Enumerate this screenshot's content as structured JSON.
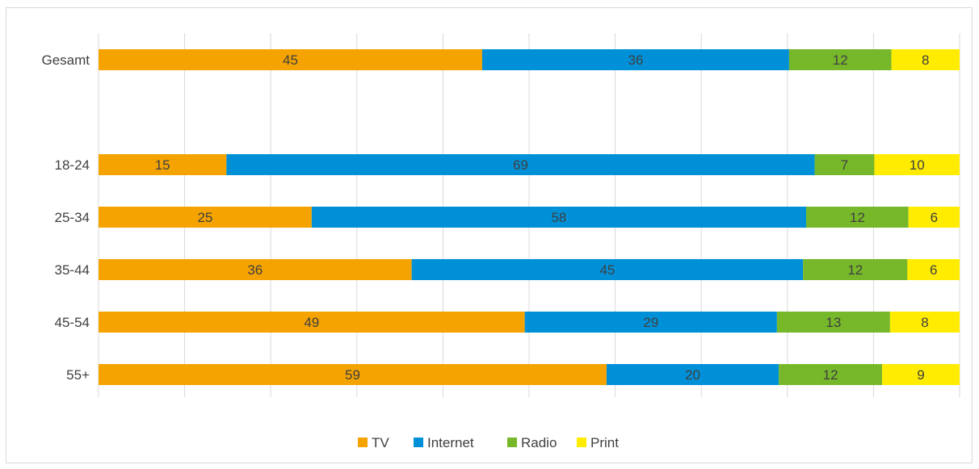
{
  "chart_data": {
    "type": "bar",
    "orientation": "horizontal",
    "stacking": "100%",
    "title": "",
    "xlabel": "",
    "ylabel": "",
    "xlim": [
      0,
      100
    ],
    "grid": true,
    "legend_position": "bottom",
    "categories": [
      "Gesamt",
      "18-24",
      "25-34",
      "35-44",
      "45-54",
      "55+"
    ],
    "series": [
      {
        "name": "TV",
        "color": "#f5a300",
        "values": [
          45,
          15,
          25,
          36,
          49,
          59
        ]
      },
      {
        "name": "Internet",
        "color": "#0090d8",
        "values": [
          36,
          69,
          58,
          45,
          29,
          20
        ]
      },
      {
        "name": "Radio",
        "color": "#77b82a",
        "values": [
          12,
          7,
          12,
          12,
          13,
          12
        ]
      },
      {
        "name": "Print",
        "color": "#ffec00",
        "values": [
          8,
          10,
          6,
          6,
          8,
          9
        ]
      }
    ]
  }
}
